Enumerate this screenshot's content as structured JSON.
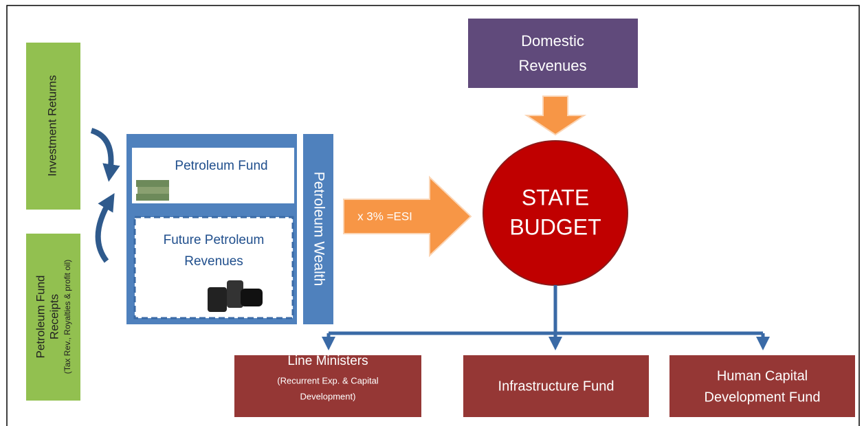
{
  "nodes": {
    "investment_returns": {
      "label": "Investment Returns"
    },
    "fund_receipts": {
      "label": [
        "Petroleum Fund",
        "Receipts"
      ],
      "note": "(Tax Rev., Royalties & profit oil)"
    },
    "petroleum_fund": {
      "label": "Petroleum Fund"
    },
    "future_revenues": {
      "label": [
        "Future Petroleum",
        "Revenues"
      ]
    },
    "petroleum_wealth": {
      "label": "Petroleum Wealth"
    },
    "esi_arrow": {
      "label": "x 3% =ESI"
    },
    "domestic_revenues": {
      "label": [
        "Domestic",
        "Revenues"
      ]
    },
    "state_budget": {
      "label": [
        "STATE",
        "BUDGET"
      ]
    },
    "line_ministers": {
      "label": "Line Ministers",
      "note": [
        "(Recurrent Exp. & Capital",
        "Development)"
      ]
    },
    "infrastructure_fund": {
      "label": "Infrastructure Fund"
    },
    "human_capital_fund": {
      "label": [
        "Human Capital",
        "Development Fund"
      ]
    }
  }
}
